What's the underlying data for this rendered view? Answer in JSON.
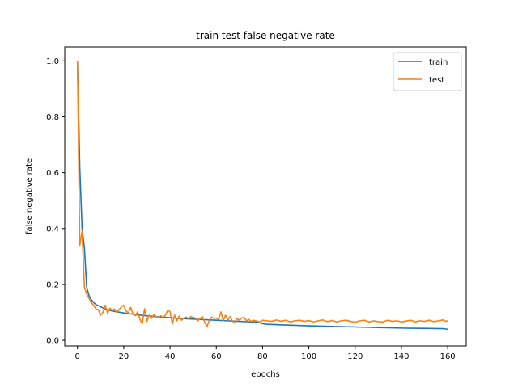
{
  "chart_data": {
    "type": "line",
    "title": "train test false negative rate",
    "xlabel": "epochs",
    "ylabel": "false negative rate",
    "xlim": [
      -5.5,
      168
    ],
    "ylim": [
      -0.02,
      1.05
    ],
    "x_ticks": [
      0,
      20,
      40,
      60,
      80,
      100,
      120,
      140,
      160
    ],
    "y_ticks": [
      0.0,
      0.2,
      0.4,
      0.6,
      0.8,
      1.0
    ],
    "x_tick_labels": [
      "0",
      "20",
      "40",
      "60",
      "80",
      "100",
      "120",
      "140",
      "160"
    ],
    "y_tick_labels": [
      "0.0",
      "0.2",
      "0.4",
      "0.6",
      "0.8",
      "1.0"
    ],
    "grid": false,
    "legend_position": "top-right",
    "series": [
      {
        "name": "train",
        "color": "#1f77b4",
        "points": [
          [
            0,
            1.0
          ],
          [
            1,
            0.62
          ],
          [
            2,
            0.4
          ],
          [
            3,
            0.33
          ],
          [
            4,
            0.19
          ],
          [
            5,
            0.16
          ],
          [
            6,
            0.145
          ],
          [
            7,
            0.135
          ],
          [
            8,
            0.128
          ],
          [
            10,
            0.12
          ],
          [
            12,
            0.112
          ],
          [
            15,
            0.105
          ],
          [
            20,
            0.098
          ],
          [
            25,
            0.092
          ],
          [
            30,
            0.088
          ],
          [
            35,
            0.084
          ],
          [
            40,
            0.081
          ],
          [
            45,
            0.078
          ],
          [
            50,
            0.076
          ],
          [
            55,
            0.074
          ],
          [
            60,
            0.072
          ],
          [
            65,
            0.07
          ],
          [
            70,
            0.068
          ],
          [
            75,
            0.066
          ],
          [
            78,
            0.065
          ],
          [
            79,
            0.063
          ],
          [
            80,
            0.06
          ],
          [
            81,
            0.058
          ],
          [
            90,
            0.055
          ],
          [
            100,
            0.052
          ],
          [
            110,
            0.05
          ],
          [
            120,
            0.048
          ],
          [
            130,
            0.046
          ],
          [
            140,
            0.044
          ],
          [
            150,
            0.043
          ],
          [
            158,
            0.042
          ],
          [
            160,
            0.04
          ]
        ]
      },
      {
        "name": "test",
        "color": "#ff7f0e",
        "points": [
          [
            0,
            1.0
          ],
          [
            1,
            0.34
          ],
          [
            2,
            0.39
          ],
          [
            3,
            0.19
          ],
          [
            4,
            0.165
          ],
          [
            5,
            0.15
          ],
          [
            6,
            0.135
          ],
          [
            7,
            0.125
          ],
          [
            8,
            0.112
          ],
          [
            9,
            0.11
          ],
          [
            10,
            0.09
          ],
          [
            11,
            0.1
          ],
          [
            12,
            0.126
          ],
          [
            13,
            0.097
          ],
          [
            14,
            0.115
          ],
          [
            15,
            0.108
          ],
          [
            16,
            0.112
          ],
          [
            17,
            0.1
          ],
          [
            18,
            0.11
          ],
          [
            19,
            0.12
          ],
          [
            20,
            0.125
          ],
          [
            21,
            0.105
          ],
          [
            22,
            0.098
          ],
          [
            23,
            0.118
          ],
          [
            24,
            0.095
          ],
          [
            25,
            0.088
          ],
          [
            26,
            0.102
          ],
          [
            27,
            0.075
          ],
          [
            28,
            0.06
          ],
          [
            29,
            0.113
          ],
          [
            30,
            0.068
          ],
          [
            31,
            0.09
          ],
          [
            32,
            0.078
          ],
          [
            33,
            0.092
          ],
          [
            34,
            0.085
          ],
          [
            35,
            0.08
          ],
          [
            36,
            0.088
          ],
          [
            37,
            0.082
          ],
          [
            38,
            0.09
          ],
          [
            39,
            0.107
          ],
          [
            40,
            0.103
          ],
          [
            41,
            0.058
          ],
          [
            42,
            0.09
          ],
          [
            43,
            0.07
          ],
          [
            44,
            0.087
          ],
          [
            45,
            0.072
          ],
          [
            46,
            0.08
          ],
          [
            47,
            0.083
          ],
          [
            48,
            0.078
          ],
          [
            49,
            0.085
          ],
          [
            50,
            0.082
          ],
          [
            51,
            0.08
          ],
          [
            52,
            0.07
          ],
          [
            53,
            0.078
          ],
          [
            54,
            0.085
          ],
          [
            55,
            0.065
          ],
          [
            56,
            0.05
          ],
          [
            57,
            0.072
          ],
          [
            58,
            0.083
          ],
          [
            59,
            0.078
          ],
          [
            60,
            0.08
          ],
          [
            61,
            0.075
          ],
          [
            62,
            0.102
          ],
          [
            63,
            0.07
          ],
          [
            64,
            0.09
          ],
          [
            65,
            0.072
          ],
          [
            66,
            0.085
          ],
          [
            67,
            0.068
          ],
          [
            68,
            0.065
          ],
          [
            69,
            0.078
          ],
          [
            70,
            0.072
          ],
          [
            71,
            0.08
          ],
          [
            72,
            0.082
          ],
          [
            73,
            0.07
          ],
          [
            74,
            0.075
          ],
          [
            75,
            0.068
          ],
          [
            76,
            0.072
          ],
          [
            77,
            0.07
          ],
          [
            78,
            0.068
          ],
          [
            79,
            0.066
          ],
          [
            80,
            0.072
          ],
          [
            82,
            0.07
          ],
          [
            84,
            0.068
          ],
          [
            86,
            0.073
          ],
          [
            88,
            0.068
          ],
          [
            90,
            0.072
          ],
          [
            92,
            0.066
          ],
          [
            94,
            0.07
          ],
          [
            96,
            0.072
          ],
          [
            98,
            0.068
          ],
          [
            100,
            0.071
          ],
          [
            102,
            0.066
          ],
          [
            104,
            0.07
          ],
          [
            106,
            0.073
          ],
          [
            108,
            0.067
          ],
          [
            110,
            0.071
          ],
          [
            112,
            0.066
          ],
          [
            114,
            0.07
          ],
          [
            116,
            0.072
          ],
          [
            118,
            0.068
          ],
          [
            120,
            0.065
          ],
          [
            122,
            0.07
          ],
          [
            124,
            0.072
          ],
          [
            126,
            0.066
          ],
          [
            128,
            0.07
          ],
          [
            130,
            0.067
          ],
          [
            132,
            0.066
          ],
          [
            134,
            0.072
          ],
          [
            136,
            0.068
          ],
          [
            138,
            0.07
          ],
          [
            140,
            0.066
          ],
          [
            142,
            0.069
          ],
          [
            144,
            0.072
          ],
          [
            146,
            0.066
          ],
          [
            148,
            0.07
          ],
          [
            150,
            0.068
          ],
          [
            152,
            0.072
          ],
          [
            154,
            0.067
          ],
          [
            156,
            0.07
          ],
          [
            158,
            0.073
          ],
          [
            159,
            0.068
          ],
          [
            160,
            0.07
          ]
        ]
      }
    ]
  }
}
